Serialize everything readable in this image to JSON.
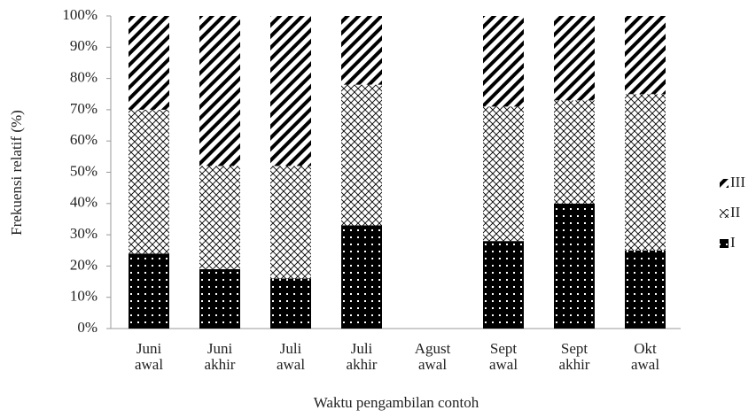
{
  "chart_data": {
    "type": "stacked-bar",
    "y_label": "Frekuensi relatif (%)",
    "x_label": "Waktu pengambilan contoh",
    "categories": [
      "Juni awal",
      "Juni akhir",
      "Juli awal",
      "Juli akhir",
      "Agust awal",
      "Sept awal",
      "Sept akhir",
      "Okt awal"
    ],
    "series": [
      {
        "name": "I",
        "color": "#000000",
        "pattern": "dots",
        "values": [
          24,
          19,
          16,
          33,
          null,
          28,
          40,
          25
        ]
      },
      {
        "name": "II",
        "color": "#000000",
        "pattern": "crosshatch",
        "values": [
          46,
          33,
          36,
          45,
          null,
          43,
          33,
          50
        ]
      },
      {
        "name": "III",
        "color": "#000000",
        "pattern": "diagonal",
        "values": [
          30,
          48,
          48,
          22,
          null,
          29,
          27,
          25
        ]
      }
    ],
    "ylim": [
      0,
      100
    ],
    "yticks": [
      {
        "value": 0,
        "label": "0%"
      },
      {
        "value": 10,
        "label": "10%"
      },
      {
        "value": 20,
        "label": "20%"
      },
      {
        "value": 30,
        "label": "30%"
      },
      {
        "value": 40,
        "label": "40%"
      },
      {
        "value": 50,
        "label": "50%"
      },
      {
        "value": 60,
        "label": "60%"
      },
      {
        "value": 70,
        "label": "70%"
      },
      {
        "value": 80,
        "label": "80%"
      },
      {
        "value": 90,
        "label": "90%"
      },
      {
        "value": 100,
        "label": "100%"
      }
    ],
    "legend": "right"
  }
}
